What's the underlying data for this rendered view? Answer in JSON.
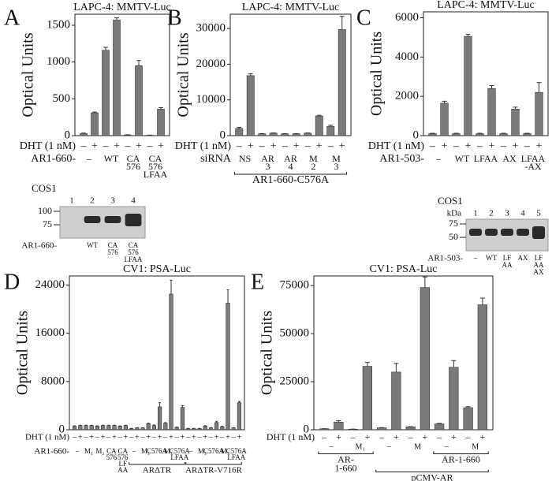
{
  "chart_data": [
    {
      "type": "bar",
      "panel": "A",
      "title": "LAPC-4: MMTV-Luc",
      "ylabel": "Optical Units",
      "color": "#7a7a7a",
      "ylim": [
        0,
        1650
      ],
      "yticks": [
        0,
        500,
        1000,
        1500
      ],
      "row_labels": [
        "DHT (1 nM)",
        "AR1-660-"
      ],
      "categories": [
        "–",
        "+",
        "–",
        "+",
        "–",
        "+",
        "–",
        "+"
      ],
      "values": [
        30,
        310,
        1160,
        1570,
        10,
        950,
        5,
        360
      ],
      "errors": [
        5,
        10,
        40,
        30,
        2,
        70,
        2,
        20
      ],
      "groups": [
        {
          "pairs": [
            [
              "–"
            ],
            [
              "WT"
            ],
            [
              "CA",
              "576"
            ],
            [
              "CA",
              "576",
              "LFAA"
            ]
          ]
        }
      ]
    },
    {
      "type": "bar",
      "panel": "B",
      "title": "LAPC-4: MMTV-Luc",
      "ylabel": "Optical Units",
      "color": "#7a7a7a",
      "ylim": [
        0,
        34000
      ],
      "yticks": [
        0,
        10000,
        20000,
        30000
      ],
      "row_labels": [
        "DHT (1 nM)",
        "siRNA"
      ],
      "categories": [
        "–",
        "+",
        "–",
        "+",
        "–",
        "+",
        "–",
        "+",
        "–",
        "+"
      ],
      "values": [
        2000,
        16800,
        500,
        700,
        500,
        500,
        700,
        5500,
        2600,
        29700
      ],
      "errors": [
        300,
        500,
        50,
        50,
        50,
        50,
        50,
        200,
        300,
        3700
      ],
      "groups": [
        {
          "bracket": [
            "AR1-660-C576A"
          ],
          "pairs": [
            [
              "NS"
            ],
            [
              "AR",
              "3"
            ],
            [
              "AR",
              "4"
            ],
            [
              "M",
              "2"
            ],
            [
              "M",
              "3"
            ]
          ]
        }
      ]
    },
    {
      "type": "bar",
      "panel": "C",
      "title": "LAPC-4: MMTV-Luc",
      "ylabel": "Optical Units",
      "color": "#7a7a7a",
      "ylim": [
        0,
        6300
      ],
      "yticks": [
        0,
        2000,
        4000,
        6000
      ],
      "row_labels": [
        "DHT (1 nM)",
        "AR1-503-"
      ],
      "categories": [
        "–",
        "+",
        "–",
        "+",
        "–",
        "+",
        "–",
        "+",
        "–",
        "+"
      ],
      "values": [
        100,
        1650,
        100,
        5050,
        100,
        2400,
        100,
        1350,
        100,
        2200
      ],
      "errors": [
        20,
        100,
        20,
        100,
        20,
        150,
        20,
        100,
        20,
        500
      ],
      "groups": [
        {
          "pairs": [
            [
              "–"
            ],
            [
              "WT"
            ],
            [
              "LFAA"
            ],
            [
              "AX"
            ],
            [
              "LFAA",
              "-AX"
            ]
          ]
        }
      ]
    },
    {
      "type": "bar",
      "panel": "D",
      "title": "CV1: PSA-Luc",
      "ylabel": "Optical Units",
      "color": "#7a7a7a",
      "ylim": [
        0,
        25500
      ],
      "yticks": [
        0,
        8000,
        16000,
        24000
      ],
      "row_labels": [
        "DHT (1 nM)",
        "AR1-660-"
      ],
      "categories": [
        "–",
        "+",
        "–",
        "+",
        "–",
        "+",
        "–",
        "+",
        "–",
        "+",
        "–",
        "+",
        "–",
        "+",
        "–",
        "+",
        "–",
        "+",
        "–",
        "+",
        "–",
        "+",
        "–",
        "+",
        "–",
        "+",
        "–",
        "+",
        "–",
        "+"
      ],
      "values": [
        600,
        700,
        700,
        700,
        600,
        700,
        700,
        700,
        600,
        700,
        200,
        300,
        300,
        1000,
        700,
        3800,
        1100,
        22500,
        400,
        3700,
        200,
        200,
        200,
        600,
        300,
        1200,
        500,
        21000,
        300,
        4500
      ],
      "errors": [
        50,
        50,
        50,
        50,
        50,
        50,
        50,
        50,
        50,
        50,
        30,
        30,
        30,
        100,
        100,
        700,
        100,
        2300,
        50,
        300,
        30,
        30,
        30,
        80,
        50,
        200,
        80,
        2200,
        50,
        200
      ],
      "groups": [
        {
          "pairs": [
            [
              "–"
            ],
            [
              "M₁"
            ],
            [
              "M₂"
            ],
            [
              "CA",
              "576"
            ],
            [
              "CA",
              "576",
              "LF",
              "AA"
            ]
          ]
        },
        {
          "bracket": [
            "ARΔTR"
          ],
          "pairs": [
            [
              "–"
            ],
            [
              "M₁"
            ],
            [
              "C576A"
            ],
            [
              "M₁"
            ],
            [
              "C576A",
              "LFAA"
            ]
          ]
        },
        {
          "bracket": [
            "ARΔTR-V716R"
          ],
          "pairs": [
            [
              "–"
            ],
            [
              "M₁"
            ],
            [
              "C576A"
            ],
            [
              "M₁"
            ],
            [
              "C576A",
              "LFAA"
            ]
          ]
        }
      ]
    },
    {
      "type": "bar",
      "panel": "E",
      "title": "CV1: PSA-Luc",
      "ylabel": "Optical Units",
      "color": "#7a7a7a",
      "ylim": [
        0,
        80000
      ],
      "yticks": [
        0,
        25000,
        50000,
        75000
      ],
      "row_labels": [
        "DHT (1 nM)"
      ],
      "categories": [
        "–",
        "+",
        "–",
        "+",
        "–",
        "+",
        "–",
        "+",
        "–",
        "+",
        "–",
        "+"
      ],
      "values": [
        500,
        4000,
        300,
        33000,
        1000,
        30000,
        1500,
        74000,
        3000,
        32500,
        11500,
        65000
      ],
      "errors": [
        50,
        700,
        50,
        2000,
        100,
        4500,
        100,
        5500,
        300,
        3500,
        500,
        3500
      ],
      "groups": [
        {
          "bracket": [
            "AR-",
            "1-660"
          ],
          "pairs": [
            [
              "–"
            ],
            [
              "M₁"
            ]
          ]
        },
        {
          "bracket": [
            "pCMV-AR"
          ],
          "pairs": [
            [
              "–"
            ],
            [
              "M"
            ]
          ],
          "inner": {
            "bracket": [
              "AR-1-660"
            ],
            "pairs": [
              [
                "–"
              ],
              [
                "M"
              ]
            ]
          }
        }
      ]
    }
  ],
  "blots": [
    {
      "title": "COS1",
      "markers": [
        100,
        75
      ],
      "lanes": [
        "1",
        "2",
        "3",
        "4"
      ],
      "row_label": "AR1-660-",
      "lane_labels": [
        null,
        [
          "WT"
        ],
        [
          "CA",
          "576"
        ],
        [
          "CA",
          "576",
          "LFAA"
        ]
      ]
    },
    {
      "title": "COS1",
      "unit": "kDa",
      "markers": [
        75,
        50
      ],
      "lanes": [
        "1",
        "2",
        "3",
        "4",
        "5"
      ],
      "row_label": "AR1-503-",
      "lane_labels": [
        [
          "–"
        ],
        [
          "WT"
        ],
        [
          "LF",
          "AA"
        ],
        [
          "AX"
        ],
        [
          "LF",
          "AA",
          "AX"
        ]
      ]
    }
  ]
}
